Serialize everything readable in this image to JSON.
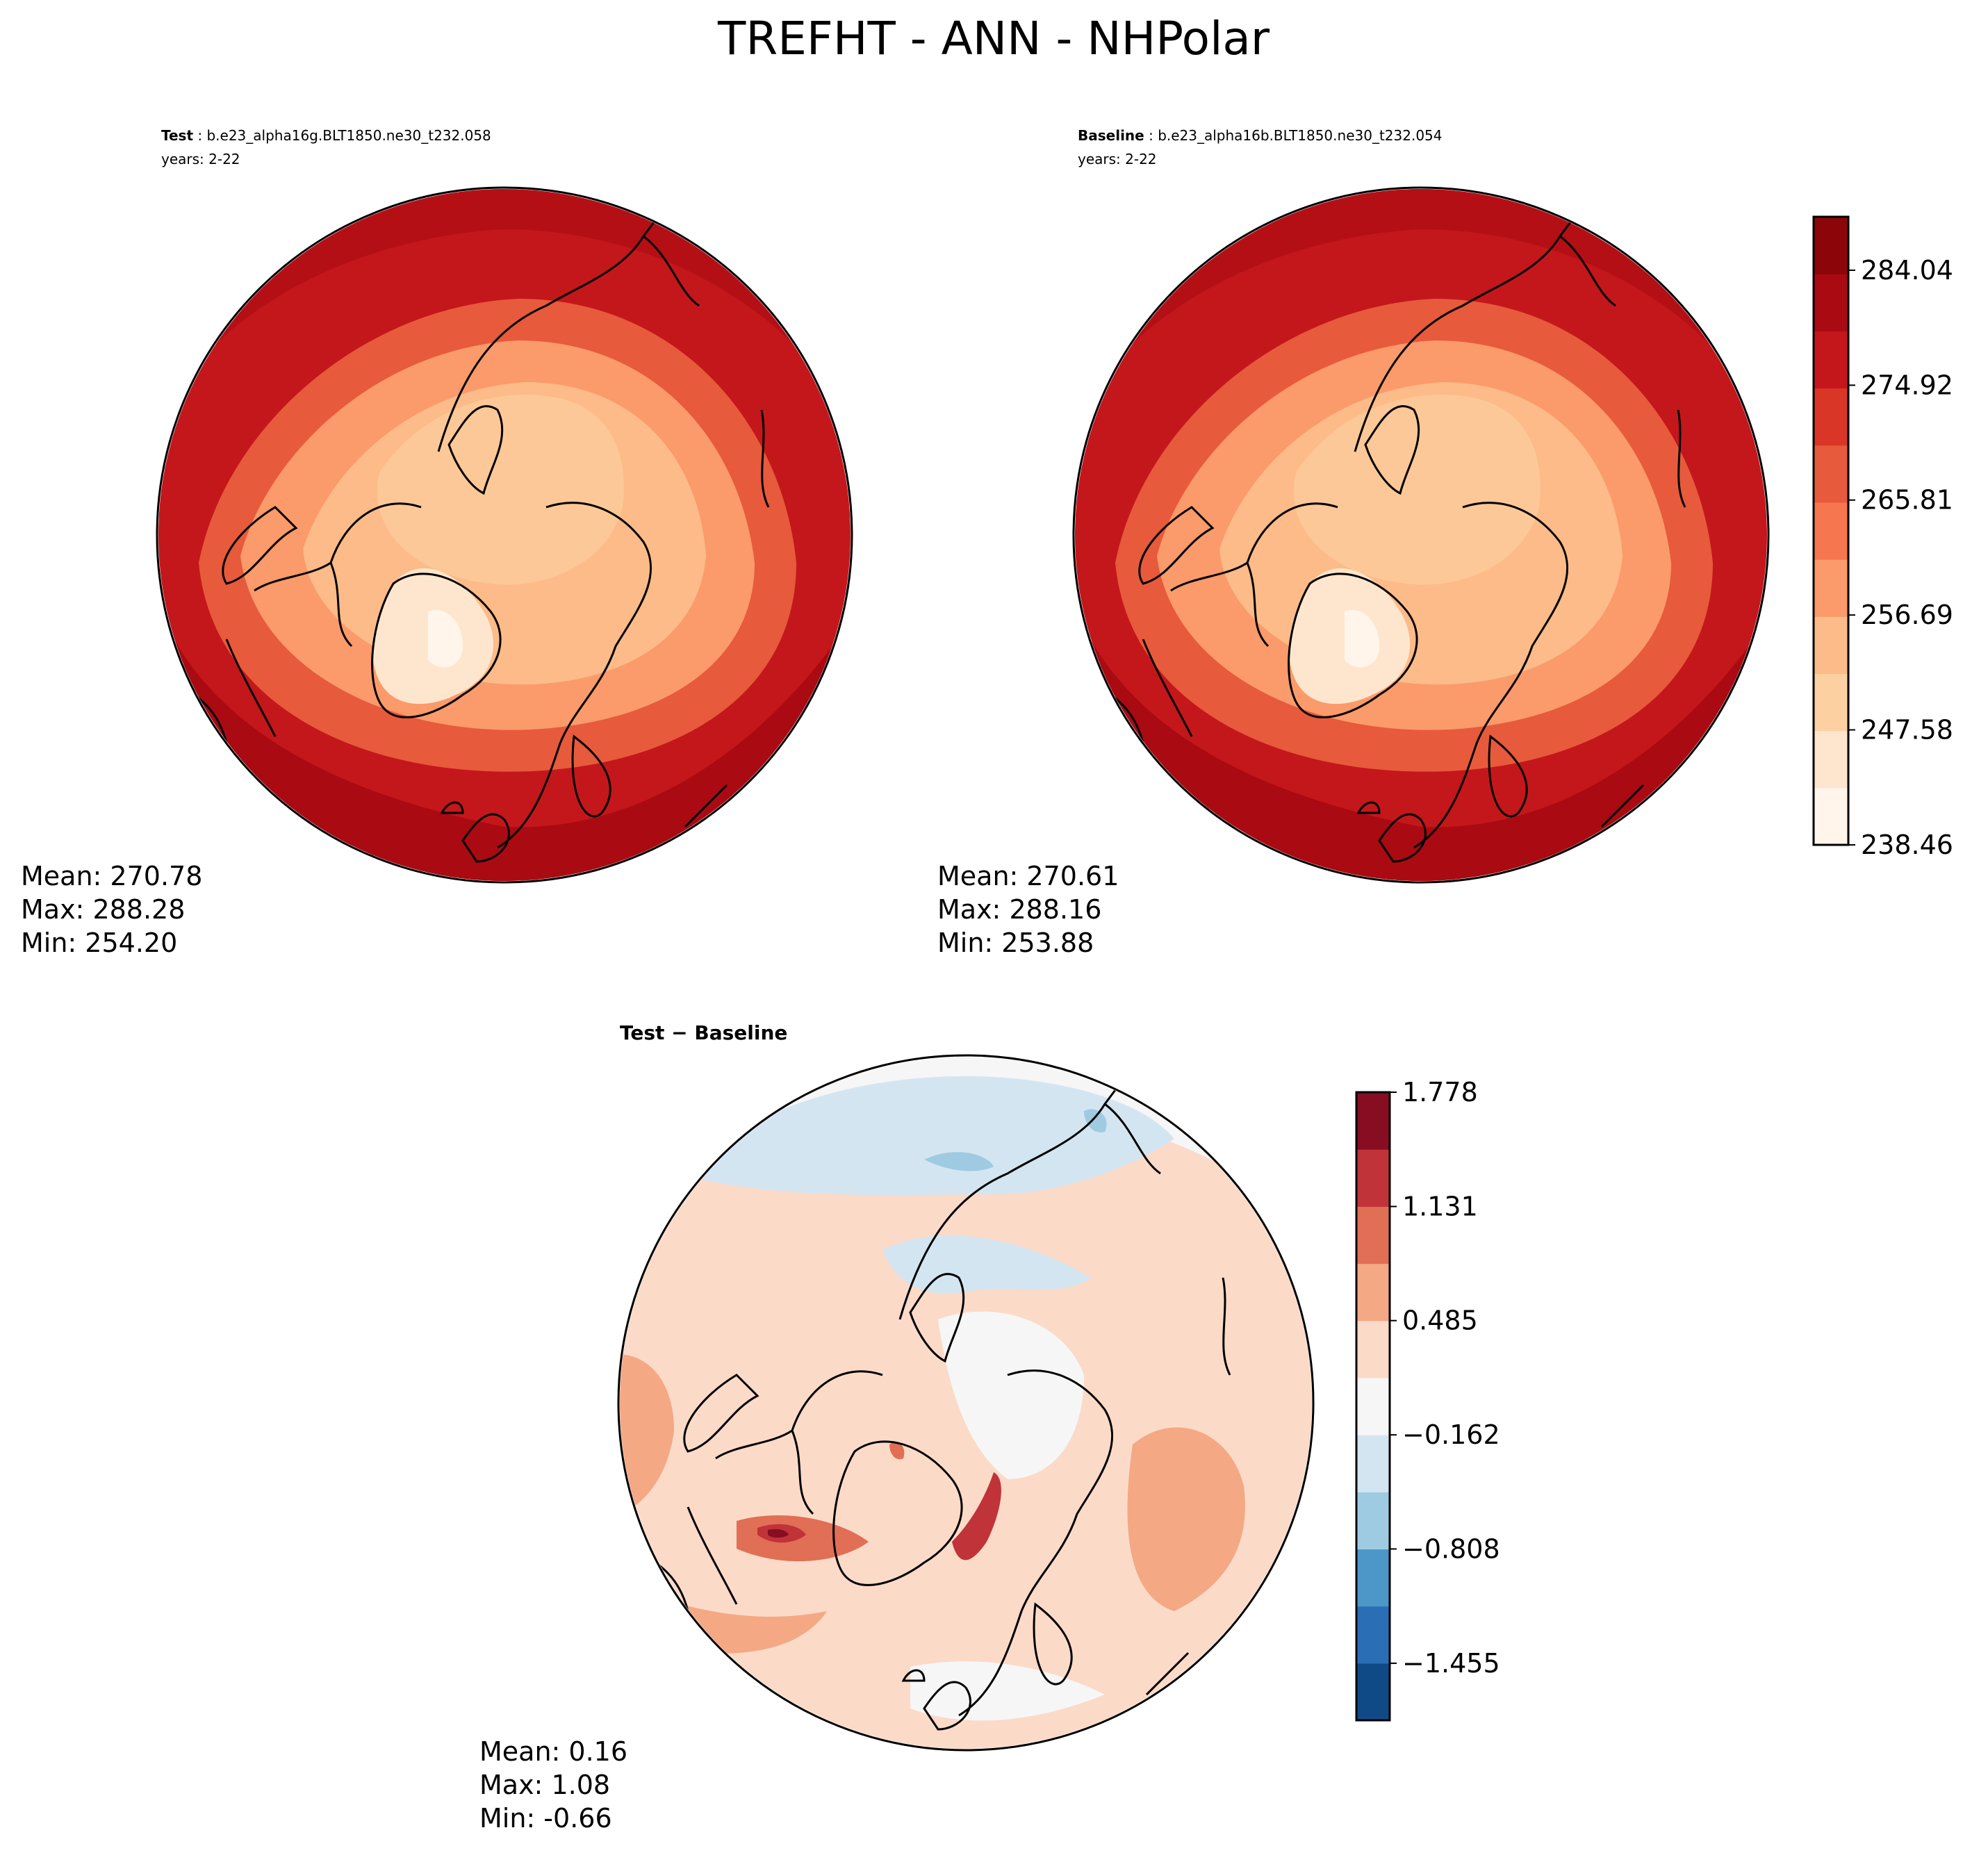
{
  "figure": {
    "title": "TREFHT - ANN - NHPolar"
  },
  "panels": {
    "test": {
      "label": "Test",
      "case": "b.e23_alpha16g.BLT1850.ne30_t232.058",
      "years": "years: 2-22",
      "stats": {
        "mean": "Mean: 270.78",
        "max": "Max: 288.28",
        "min": "Min: 254.20"
      }
    },
    "baseline": {
      "label": "Baseline",
      "case": "b.e23_alpha16b.BLT1850.ne30_t232.054",
      "years": "years: 2-22",
      "stats": {
        "mean": "Mean: 270.61",
        "max": "Max: 288.16",
        "min": "Min: 253.88"
      }
    },
    "diff": {
      "label": "Test − Baseline",
      "stats": {
        "mean": "Mean:  0.16",
        "max": "Max:  1.08",
        "min": "Min: -0.66"
      }
    }
  },
  "chart_data": [
    {
      "type": "heatmap",
      "panel": "test",
      "projection": "north-polar-stereographic",
      "title": "Test : b.e23_alpha16g.BLT1850.ne30_t232.058",
      "mean": 270.78,
      "max": 288.28,
      "min": 254.2,
      "colormap": "Reds"
    },
    {
      "type": "heatmap",
      "panel": "baseline",
      "projection": "north-polar-stereographic",
      "title": "Baseline : b.e23_alpha16b.BLT1850.ne30_t232.054",
      "mean": 270.61,
      "max": 288.16,
      "min": 253.88,
      "colormap": "Reds"
    },
    {
      "type": "heatmap",
      "panel": "diff",
      "projection": "north-polar-stereographic",
      "title": "Test − Baseline",
      "mean": 0.16,
      "max": 1.08,
      "min": -0.66,
      "colormap": "RdBu_r"
    }
  ],
  "colorbars": {
    "main": {
      "range": [
        238.46,
        288.28
      ],
      "tick_values": [
        238.46,
        247.58,
        256.69,
        265.81,
        274.92,
        284.04
      ],
      "tick_labels": [
        "238.46",
        "247.58",
        "256.69",
        "265.81",
        "274.92",
        "284.04"
      ],
      "colors": [
        "#fff5eb",
        "#fee6ce",
        "#fdd0a2",
        "#fcbb88",
        "#fb9a6a",
        "#f67650",
        "#e75a3c",
        "#d93627",
        "#c4171b",
        "#aa0a12",
        "#8c0609"
      ]
    },
    "diff": {
      "range": [
        -1.778,
        1.778
      ],
      "tick_values": [
        -1.455,
        -0.808,
        -0.162,
        0.485,
        1.131,
        1.778
      ],
      "tick_labels": [
        "−1.455",
        "−0.808",
        "−0.162",
        "0.485",
        "1.131",
        "1.778"
      ],
      "colors": [
        "#0f4a87",
        "#2a6fb6",
        "#4d96c8",
        "#9fcbe2",
        "#d4e5f2",
        "#f6f6f6",
        "#fbdac8",
        "#f4a884",
        "#e06f55",
        "#c03338",
        "#870d23"
      ]
    }
  }
}
